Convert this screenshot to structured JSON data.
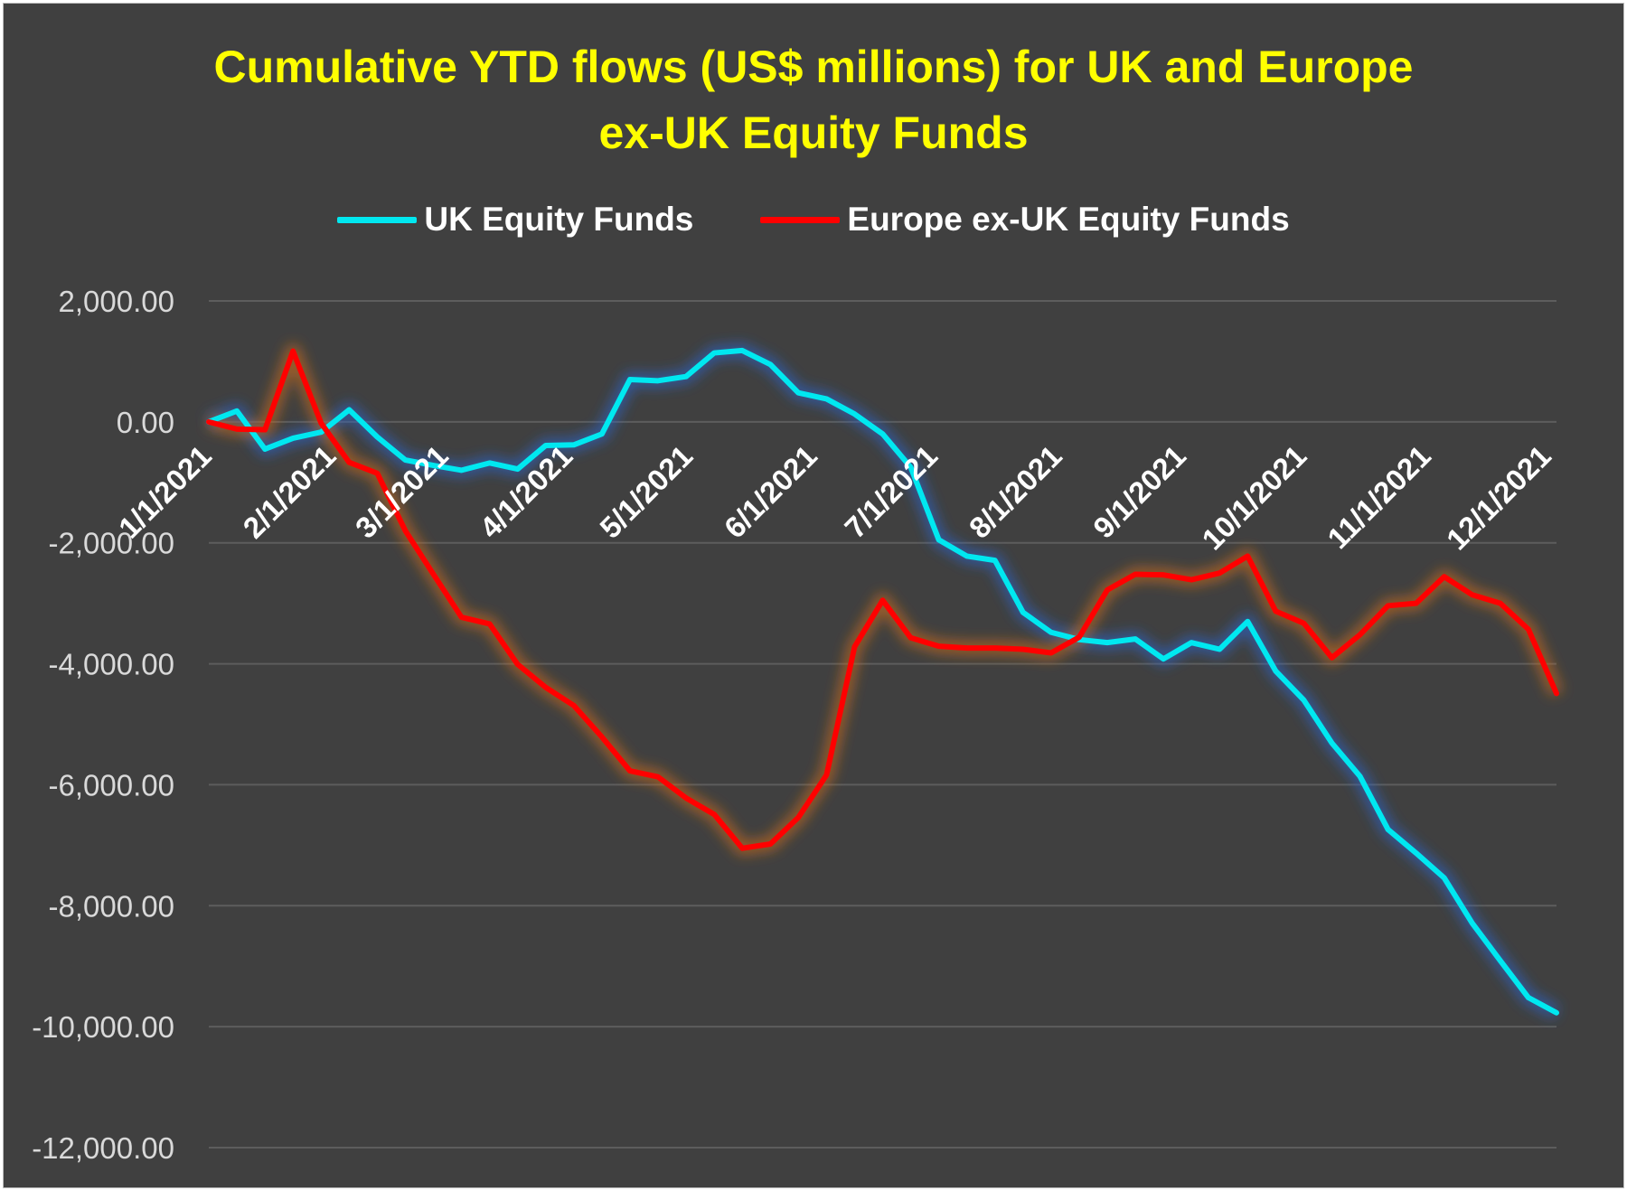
{
  "chart_data": {
    "type": "line",
    "title": [
      "Cumulative YTD flows (US$ millions) for UK and Europe",
      "ex-UK Equity Funds"
    ],
    "ylim": [
      -12000,
      2000
    ],
    "y_ticks": [
      "2,000.00",
      "0.00",
      "-2,000.00",
      "-4,000.00",
      "-6,000.00",
      "-8,000.00",
      "-10,000.00",
      "-12,000.00"
    ],
    "y_tick_values": [
      2000,
      0,
      -2000,
      -4000,
      -6000,
      -8000,
      -10000,
      -12000
    ],
    "x_tick_labels": [
      "1/1/2021",
      "2/1/2021",
      "3/1/2021",
      "4/1/2021",
      "5/1/2021",
      "6/1/2021",
      "7/1/2021",
      "8/1/2021",
      "9/1/2021",
      "10/1/2021",
      "11/1/2021",
      "12/1/2021"
    ],
    "x_tick_weeks": [
      0,
      4.43,
      8.43,
      12.86,
      17.14,
      21.57,
      25.86,
      30.29,
      34.71,
      39.0,
      43.43,
      47.71
    ],
    "x_range": [
      0,
      48
    ],
    "grid": true,
    "legend_position": "top",
    "series": [
      {
        "name": "UK Equity Funds",
        "color": "#00e8f0",
        "values": [
          0,
          180,
          -450,
          -270,
          -170,
          200,
          -250,
          -630,
          -720,
          -800,
          -680,
          -780,
          -390,
          -380,
          -200,
          700,
          680,
          750,
          1140,
          1180,
          950,
          480,
          380,
          130,
          -200,
          -750,
          -1950,
          -2220,
          -2290,
          -3150,
          -3480,
          -3600,
          -3650,
          -3590,
          -3920,
          -3650,
          -3760,
          -3300,
          -4120,
          -4600,
          -5310,
          -5860,
          -6740,
          -7130,
          -7540,
          -8290,
          -8910,
          -9520,
          -9770
        ]
      },
      {
        "name": "Europe ex-UK Equity Funds",
        "color": "#ff0000",
        "values": [
          0,
          -120,
          -130,
          1170,
          -20,
          -670,
          -850,
          -1800,
          -2520,
          -3230,
          -3340,
          -4010,
          -4390,
          -4690,
          -5210,
          -5770,
          -5870,
          -6220,
          -6490,
          -7050,
          -6980,
          -6540,
          -5840,
          -3720,
          -2950,
          -3570,
          -3710,
          -3740,
          -3740,
          -3760,
          -3820,
          -3560,
          -2780,
          -2520,
          -2530,
          -2610,
          -2500,
          -2220,
          -3130,
          -3330,
          -3900,
          -3520,
          -3040,
          -3000,
          -2560,
          -2860,
          -3000,
          -3430,
          -4490
        ]
      }
    ]
  }
}
